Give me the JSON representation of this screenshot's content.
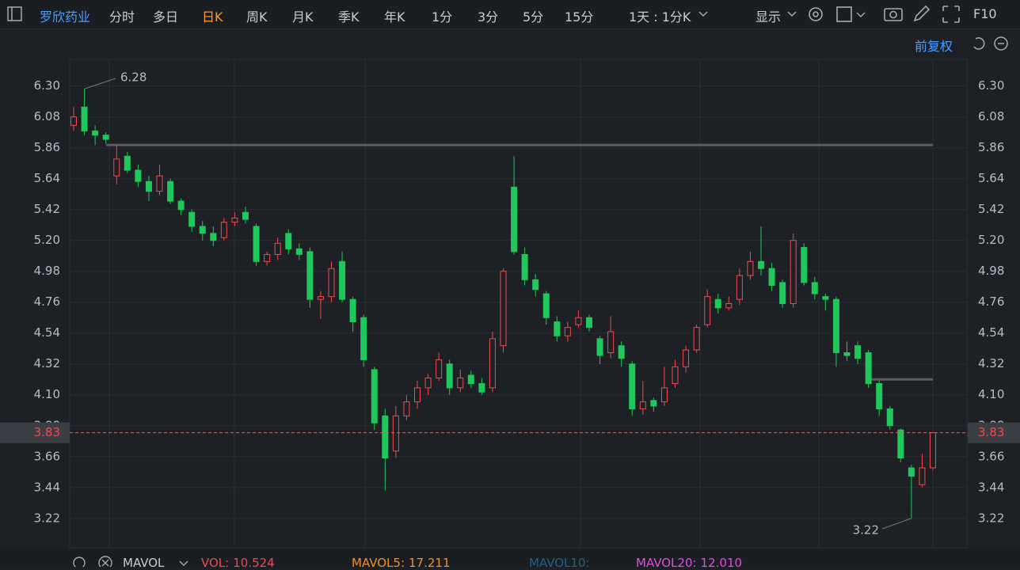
{
  "toolbar": {
    "stock": "罗欣药业",
    "periods": [
      "分时",
      "多日",
      "日K",
      "周K",
      "月K",
      "季K",
      "年K",
      "1分",
      "3分",
      "5分",
      "15分"
    ],
    "active": "日K",
    "range": "1天 : 1分K",
    "display": "显示",
    "f10": "F10",
    "adjust": "前复权"
  },
  "chart_data": {
    "type": "candlestick",
    "ylim": [
      3.01,
      6.49
    ],
    "yticks": [
      {
        "value": 6.3,
        "label": "6.30"
      },
      6.08,
      5.86,
      5.64,
      5.42,
      {
        "value": 5.2,
        "label": "5.20"
      },
      4.98,
      4.76,
      4.54,
      4.32,
      {
        "value": 4.1,
        "label": "4.10"
      },
      3.88,
      3.66,
      3.44,
      3.22
    ],
    "up_color": "#f04a4f",
    "down_color": "#20c75a",
    "ohlc": [
      [
        6.02,
        6.15,
        5.98,
        6.08
      ],
      [
        6.15,
        6.28,
        5.95,
        5.98
      ],
      [
        5.98,
        6.02,
        5.88,
        5.95
      ],
      [
        5.95,
        5.97,
        5.89,
        5.92
      ],
      [
        5.66,
        5.88,
        5.6,
        5.78
      ],
      [
        5.8,
        5.83,
        5.68,
        5.7
      ],
      [
        5.7,
        5.74,
        5.58,
        5.62
      ],
      [
        5.62,
        5.66,
        5.48,
        5.55
      ],
      [
        5.55,
        5.74,
        5.52,
        5.66
      ],
      [
        5.62,
        5.64,
        5.46,
        5.48
      ],
      [
        5.48,
        5.5,
        5.38,
        5.42
      ],
      [
        5.4,
        5.42,
        5.26,
        5.3
      ],
      [
        5.3,
        5.34,
        5.2,
        5.25
      ],
      [
        5.25,
        5.3,
        5.16,
        5.2
      ],
      [
        5.22,
        5.36,
        5.2,
        5.33
      ],
      [
        5.33,
        5.4,
        5.3,
        5.36
      ],
      [
        5.4,
        5.44,
        5.32,
        5.35
      ],
      [
        5.3,
        5.32,
        5.02,
        5.05
      ],
      [
        5.05,
        5.12,
        5.02,
        5.1
      ],
      [
        5.1,
        5.22,
        5.06,
        5.18
      ],
      [
        5.25,
        5.28,
        5.1,
        5.14
      ],
      [
        5.14,
        5.18,
        5.06,
        5.1
      ],
      [
        5.12,
        5.15,
        4.72,
        4.78
      ],
      [
        4.78,
        4.84,
        4.64,
        4.8
      ],
      [
        4.8,
        5.05,
        4.76,
        5.0
      ],
      [
        5.05,
        5.12,
        4.76,
        4.78
      ],
      [
        4.78,
        4.8,
        4.55,
        4.62
      ],
      [
        4.65,
        4.67,
        4.3,
        4.35
      ],
      [
        4.28,
        4.3,
        3.85,
        3.9
      ],
      [
        3.95,
        4.0,
        3.42,
        3.65
      ],
      [
        3.7,
        4.02,
        3.65,
        3.95
      ],
      [
        3.95,
        4.1,
        3.92,
        4.05
      ],
      [
        4.05,
        4.2,
        4.0,
        4.15
      ],
      [
        4.15,
        4.25,
        4.1,
        4.22
      ],
      [
        4.22,
        4.4,
        4.2,
        4.35
      ],
      [
        4.32,
        4.35,
        4.1,
        4.15
      ],
      [
        4.15,
        4.28,
        4.12,
        4.22
      ],
      [
        4.24,
        4.27,
        4.15,
        4.18
      ],
      [
        4.18,
        4.22,
        4.1,
        4.12
      ],
      [
        4.15,
        4.55,
        4.12,
        4.5
      ],
      [
        4.45,
        5.0,
        4.4,
        4.98
      ],
      [
        5.58,
        5.8,
        5.1,
        5.12
      ],
      [
        5.1,
        5.15,
        4.88,
        4.92
      ],
      [
        4.92,
        4.96,
        4.8,
        4.85
      ],
      [
        4.82,
        4.84,
        4.6,
        4.65
      ],
      [
        4.62,
        4.66,
        4.48,
        4.52
      ],
      [
        4.52,
        4.62,
        4.48,
        4.58
      ],
      [
        4.6,
        4.7,
        4.58,
        4.65
      ],
      [
        4.65,
        4.67,
        4.55,
        4.58
      ],
      [
        4.5,
        4.52,
        4.32,
        4.38
      ],
      [
        4.4,
        4.66,
        4.36,
        4.55
      ],
      [
        4.45,
        4.48,
        4.3,
        4.36
      ],
      [
        4.32,
        4.34,
        3.95,
        4.0
      ],
      [
        4.0,
        4.2,
        3.96,
        4.05
      ],
      [
        4.06,
        4.08,
        3.98,
        4.02
      ],
      [
        4.05,
        4.3,
        4.02,
        4.15
      ],
      [
        4.18,
        4.35,
        4.15,
        4.3
      ],
      [
        4.3,
        4.45,
        4.26,
        4.42
      ],
      [
        4.42,
        4.6,
        4.4,
        4.58
      ],
      [
        4.6,
        4.85,
        4.58,
        4.8
      ],
      [
        4.78,
        4.82,
        4.68,
        4.72
      ],
      [
        4.72,
        4.8,
        4.7,
        4.75
      ],
      [
        4.78,
        5.0,
        4.74,
        4.95
      ],
      [
        4.95,
        5.12,
        4.92,
        5.05
      ],
      [
        5.05,
        5.3,
        4.95,
        5.0
      ],
      [
        5.0,
        5.04,
        4.84,
        4.88
      ],
      [
        4.9,
        4.92,
        4.72,
        4.75
      ],
      [
        4.75,
        5.25,
        4.72,
        5.2
      ],
      [
        5.15,
        5.18,
        4.88,
        4.9
      ],
      [
        4.9,
        4.94,
        4.78,
        4.82
      ],
      [
        4.8,
        4.82,
        4.7,
        4.78
      ],
      [
        4.78,
        4.8,
        4.3,
        4.4
      ],
      [
        4.4,
        4.48,
        4.34,
        4.38
      ],
      [
        4.45,
        4.48,
        4.32,
        4.36
      ],
      [
        4.4,
        4.42,
        4.15,
        4.18
      ],
      [
        4.18,
        4.2,
        3.95,
        4.0
      ],
      [
        4.0,
        4.02,
        3.85,
        3.88
      ],
      [
        3.85,
        3.86,
        3.62,
        3.65
      ],
      [
        3.58,
        3.6,
        3.22,
        3.52
      ],
      [
        3.46,
        3.68,
        3.44,
        3.58
      ],
      [
        3.58,
        3.83,
        3.56,
        3.83
      ]
    ],
    "high_label": 6.28,
    "low_label": 3.22,
    "last_price": 3.83,
    "hlines": [
      5.88,
      4.21
    ]
  },
  "volume": {
    "selector": "MAVOL",
    "items": [
      {
        "name": "VOL:",
        "value": 10.524,
        "color": "#f04a4f"
      },
      {
        "name": "MAVOL5:",
        "value": 17.211,
        "color": "#f0902a"
      },
      {
        "name": "MAVOL10:",
        "color": "#1f5f8a"
      },
      {
        "name": "MAVOL20:",
        "value": 12.01,
        "value_label": "12.010",
        "color": "#e04ee0"
      }
    ]
  }
}
